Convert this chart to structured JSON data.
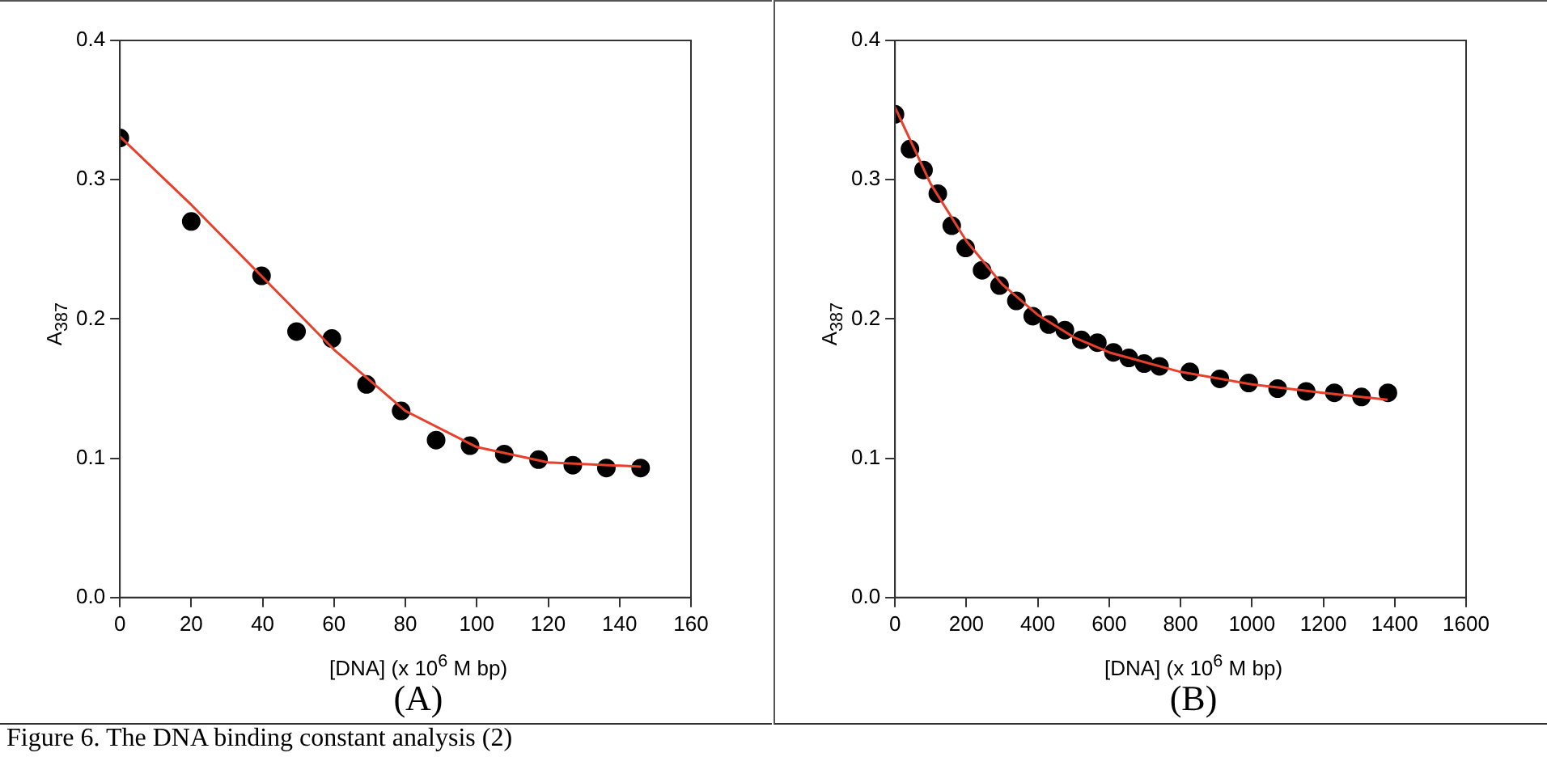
{
  "chart_data": [
    {
      "type": "scatter",
      "xlabel": "[DNA] (x 10$^{6}$ M bp)",
      "ylabel": "A$_{387}$",
      "xlim": [
        0,
        160
      ],
      "xticks": [
        0,
        20,
        40,
        60,
        80,
        100,
        120,
        140,
        160
      ],
      "ylim": [
        0,
        0.4
      ],
      "yticks": [
        {
          "value": 0,
          "label": "0.0"
        },
        0.1,
        0.2,
        0.3,
        0.4
      ],
      "grid": false,
      "legend": false,
      "annotations": [
        "(A)",
        "Figure 6. The DNA binding constant analysis (2)"
      ],
      "series": [
        {
          "type": "scatter",
          "marker": "circle",
          "color": "#000000",
          "x": [
            0,
            20,
            39.7,
            49.5,
            59.4,
            69.1,
            78.8,
            88.6,
            98.1,
            107.7,
            117.3,
            126.9,
            136.3,
            145.9
          ],
          "values": [
            0.33,
            0.27,
            0.231,
            0.191,
            0.186,
            0.153,
            0.134,
            0.113,
            0.109,
            0.103,
            0.099,
            0.095,
            0.093,
            0.093
          ]
        },
        {
          "type": "line",
          "marker": "none",
          "line_style": "solid",
          "color": "#e8402a",
          "x": [
            0,
            20,
            40,
            60,
            80,
            100,
            120,
            146
          ],
          "values": [
            0.331,
            0.282,
            0.23,
            0.178,
            0.134,
            0.108,
            0.097,
            0.094
          ]
        }
      ]
    },
    {
      "type": "scatter",
      "xlabel": "[DNA] (x 10$^{6}$ M bp)",
      "ylabel": "A$_{387}$",
      "xlim": [
        0,
        1600
      ],
      "xticks": [
        0,
        200,
        400,
        600,
        800,
        1000,
        1200,
        1400,
        1600
      ],
      "ylim": [
        0,
        0.4
      ],
      "yticks": [
        {
          "value": 0,
          "label": "0.0"
        },
        0.1,
        0.2,
        0.3,
        0.4
      ],
      "grid": false,
      "legend": false,
      "annotations": [
        "(B)"
      ],
      "series": [
        {
          "type": "scatter",
          "marker": "circle",
          "color": "#000000",
          "x": [
            0,
            42,
            80,
            120,
            159,
            198,
            244,
            293,
            340,
            386,
            431,
            476,
            522,
            567,
            612,
            655,
            698,
            741,
            826,
            910,
            991,
            1072,
            1152,
            1231,
            1307,
            1381
          ],
          "values": [
            0.347,
            0.322,
            0.307,
            0.29,
            0.267,
            0.251,
            0.235,
            0.224,
            0.213,
            0.202,
            0.196,
            0.192,
            0.185,
            0.183,
            0.176,
            0.172,
            0.168,
            0.166,
            0.162,
            0.157,
            0.154,
            0.15,
            0.148,
            0.147,
            0.144,
            0.147
          ]
        },
        {
          "type": "line",
          "marker": "none",
          "line_style": "solid",
          "color": "#e8402a",
          "x": [
            0,
            100,
            200,
            300,
            400,
            500,
            600,
            800,
            1000,
            1200,
            1380
          ],
          "values": [
            0.352,
            0.297,
            0.256,
            0.225,
            0.203,
            0.187,
            0.176,
            0.162,
            0.153,
            0.147,
            0.142
          ]
        }
      ]
    }
  ]
}
